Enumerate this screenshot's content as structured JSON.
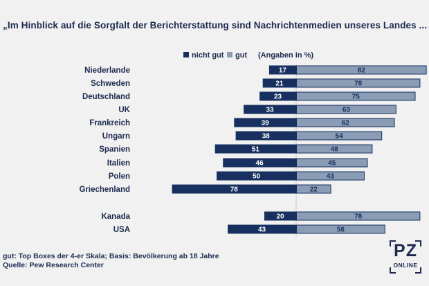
{
  "chart_data": {
    "type": "bar",
    "title": "„Im Hinblick auf die Sorgfalt der Berichterstattung sind Nachrichtenmedien unseres Landes ...",
    "unit_note": "(Angaben in %)",
    "categories": [
      "Niederlande",
      "Schweden",
      "Deutschland",
      "UK",
      "Frankreich",
      "Ungarn",
      "Spanien",
      "Italien",
      "Polen",
      "Griechenland",
      "Kanada",
      "USA"
    ],
    "series": [
      {
        "name": "nicht gut",
        "color": "#17305f",
        "values": [
          17,
          21,
          23,
          33,
          39,
          38,
          51,
          46,
          50,
          78,
          20,
          43
        ]
      },
      {
        "name": "gut",
        "color": "#8a9db4",
        "values": [
          82,
          78,
          75,
          63,
          62,
          54,
          48,
          45,
          43,
          22,
          78,
          56
        ]
      }
    ],
    "legend_position": "top",
    "grid": false
  },
  "footnote": {
    "line1": "gut: Top Boxes der 4-er Skala; Basis: Bevölkerung ab 18 Jahre",
    "line2": "Quelle: Pew Research Center"
  },
  "logo": {
    "main": "PZ",
    "sub": "ONLINE"
  }
}
